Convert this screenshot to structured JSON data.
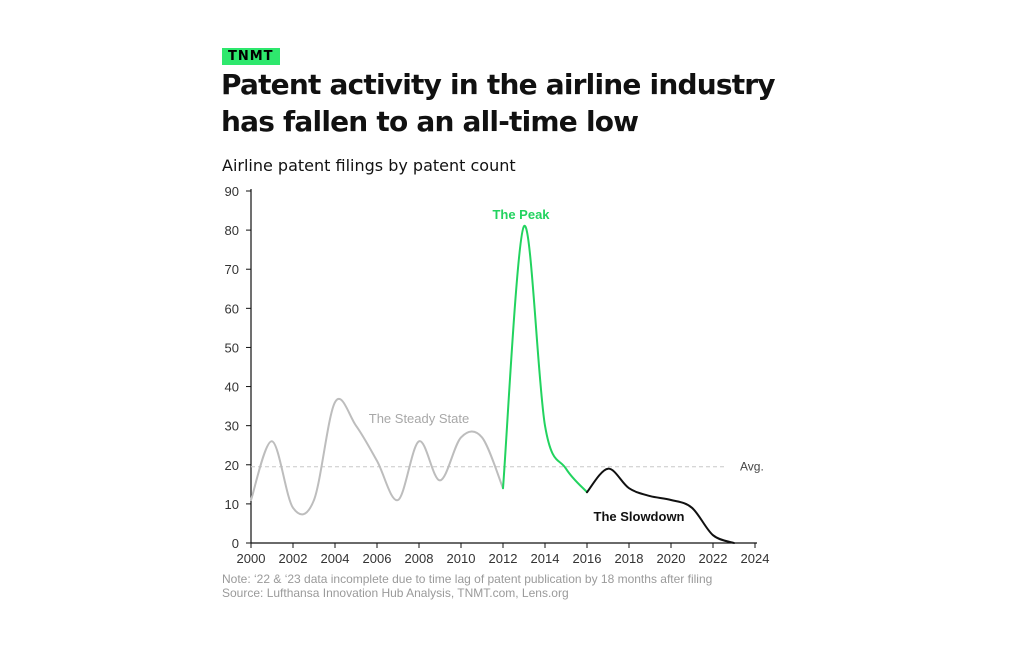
{
  "brand": "TNMT",
  "title_line1": "Patent activity in the airline industry",
  "title_line2": "has fallen to an all-time low",
  "subtitle": "Airline patent filings by patent count",
  "note": "Note: ‘22 & ‘23 data incomplete due to time lag of patent publication by 18 months after filing",
  "source": "Source: Lufthansa Innovation Hub Analysis, TNMT.com, Lens.org",
  "chart_data": {
    "type": "line",
    "title": "Airline patent filings by patent count",
    "xlim": [
      2000,
      2024
    ],
    "ylim": [
      0,
      90
    ],
    "x_ticks": [
      "2000",
      "2002",
      "2004",
      "2006",
      "2008",
      "2010",
      "2012",
      "2014",
      "2016",
      "2018",
      "2020",
      "2022",
      "2024"
    ],
    "y_ticks": [
      "0",
      "10",
      "20",
      "30",
      "40",
      "50",
      "60",
      "70",
      "80",
      "90"
    ],
    "average": {
      "label": "Avg.",
      "value": 19.5
    },
    "series": [
      {
        "name": "The Steady State",
        "color": "#bdbdbd",
        "x": [
          2000,
          2001,
          2002,
          2003,
          2004,
          2005,
          2006,
          2007,
          2008,
          2009,
          2010,
          2011,
          2012
        ],
        "y": [
          11,
          26,
          9,
          11,
          36,
          30,
          21,
          11,
          26,
          16,
          27,
          27,
          14
        ]
      },
      {
        "name": "The Peak",
        "color": "#22d35f",
        "x": [
          2012,
          2013,
          2014,
          2015,
          2016
        ],
        "y": [
          14,
          81,
          30,
          19,
          13
        ]
      },
      {
        "name": "The Slowdown",
        "color": "#111111",
        "x": [
          2016,
          2017,
          2018,
          2019,
          2020,
          2021,
          2022,
          2023
        ],
        "y": [
          13,
          19,
          14,
          12,
          11,
          9,
          2,
          0
        ]
      }
    ],
    "annotations": [
      {
        "text": "The Peak",
        "color": "#22d35f"
      },
      {
        "text": "The Steady State",
        "color": "#a8a8a8"
      },
      {
        "text": "The Slowdown",
        "color": "#111111"
      }
    ]
  }
}
